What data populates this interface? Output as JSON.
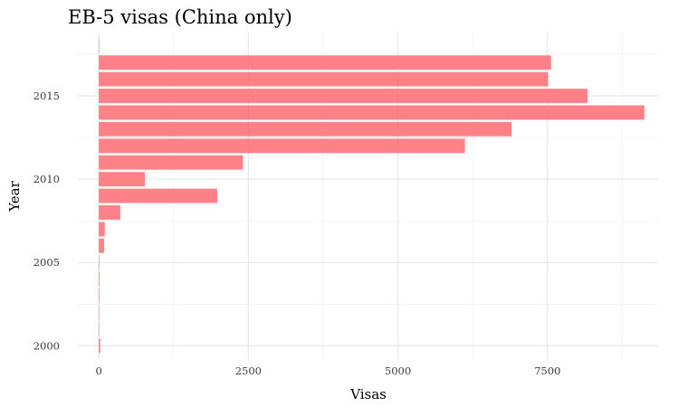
{
  "chart_data": {
    "type": "bar",
    "orientation": "horizontal",
    "title": "EB-5 visas (China only)",
    "xlabel": "Visas",
    "ylabel": "Year",
    "x_ticks": [
      0,
      2500,
      5000,
      7500
    ],
    "y_ticks": [
      2000,
      2005,
      2010,
      2015
    ],
    "xlim": [
      -350,
      9350
    ],
    "ylim": [
      1999.2,
      2018.8
    ],
    "grid": true,
    "legend": "none",
    "bar_color": "#ff6b73",
    "series": [
      {
        "years": [
          2000,
          2001,
          2002,
          2003,
          2004,
          2005,
          2006,
          2007,
          2008,
          2009,
          2010,
          2011,
          2012,
          2013,
          2014,
          2015,
          2016,
          2017,
          2018
        ],
        "values": [
          25,
          5,
          8,
          10,
          12,
          8,
          90,
          100,
          360,
          1980,
          770,
          2410,
          6120,
          6900,
          9120,
          8170,
          7510,
          7560,
          6
        ]
      }
    ]
  }
}
